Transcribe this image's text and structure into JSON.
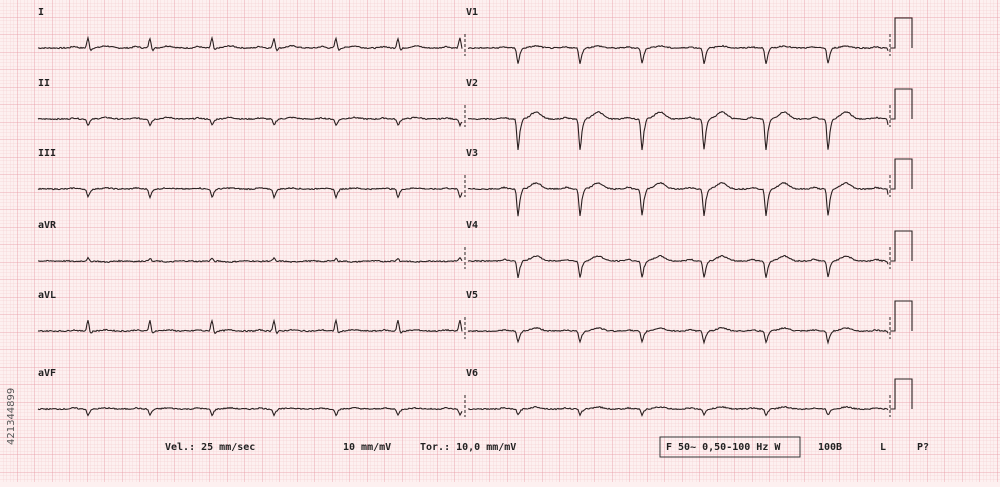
{
  "leads": {
    "left": [
      "I",
      "II",
      "III",
      "aVR",
      "aVL",
      "aVF"
    ],
    "right": [
      "V1",
      "V2",
      "V3",
      "V4",
      "V5",
      "V6"
    ]
  },
  "footer": {
    "speed": "Vel.: 25 mm/sec",
    "gain": "10 mm/mV",
    "chest_gain": "Tor.: 10,0 mm/mV",
    "filter": "F 50~ 0,50-100 Hz W",
    "rate": "100B",
    "mode": "L",
    "flag": "P?"
  },
  "side_id": "421344899"
}
